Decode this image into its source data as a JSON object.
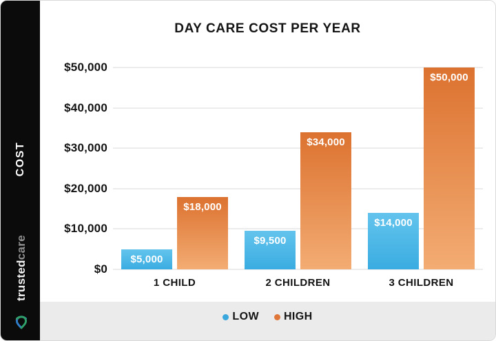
{
  "sidebar": {
    "cost_label": "COST",
    "brand": {
      "bold": "trusted",
      "light": "care"
    },
    "logo_colors": {
      "blue": "#2f7dc8",
      "green": "#2fa06a",
      "red": "#d04a3c"
    }
  },
  "chart_data": {
    "type": "bar",
    "title": "DAY CARE COST PER YEAR",
    "categories": [
      "1 CHILD",
      "2 CHILDREN",
      "3 CHILDREN"
    ],
    "series": [
      {
        "name": "LOW",
        "values": [
          5000,
          9500,
          14000
        ],
        "labels": [
          "$5,000",
          "$9,500",
          "$14,000"
        ],
        "gradient": [
          "#63c4ed",
          "#3aace1"
        ],
        "dot": "#3aa7dd"
      },
      {
        "name": "HIGH",
        "values": [
          18000,
          34000,
          50000
        ],
        "labels": [
          "$18,000",
          "$34,000",
          "$50,000"
        ],
        "gradient": [
          "#dc7230",
          "#f3ac73"
        ],
        "dot": "#e0773a"
      }
    ],
    "ylabel": "COST",
    "ylim": [
      0,
      50000
    ],
    "yticks": [
      0,
      10000,
      20000,
      30000,
      40000,
      50000
    ],
    "ytick_labels": [
      "$0",
      "$10,000",
      "$20,000",
      "$30,000",
      "$40,000",
      "$50,000"
    ],
    "grid": true,
    "legend_position": "bottom",
    "colors": {
      "background": "#ffffff",
      "legend_band": "#ebebeb",
      "sidebar": "#0b0b0b"
    }
  }
}
